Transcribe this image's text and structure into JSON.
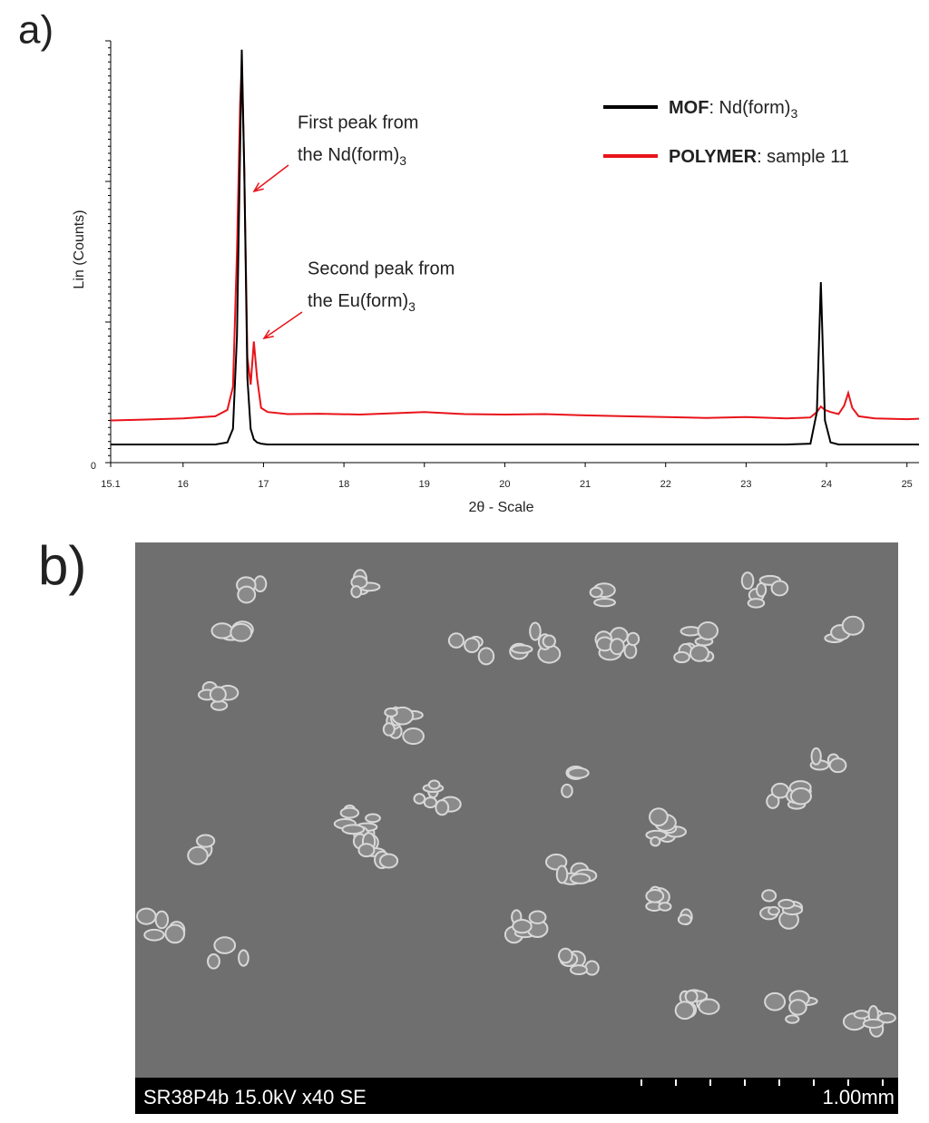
{
  "panel_labels": [
    "a)",
    "b)"
  ],
  "chart_data": {
    "type": "line",
    "y_label": "Lin (Counts)",
    "x_label": "2θ - Scale",
    "x": [
      15.1,
      15.5,
      16,
      16.4,
      16.55,
      16.62,
      16.67,
      16.71,
      16.73,
      16.76,
      16.8,
      16.84,
      16.88,
      16.92,
      16.97,
      17.05,
      17.3,
      17.7,
      18.2,
      19,
      19.5,
      20,
      20.5,
      21,
      21.5,
      22,
      22.5,
      23,
      23.5,
      23.8,
      23.88,
      23.93,
      23.98,
      24.05,
      24.15,
      24.22,
      24.27,
      24.32,
      24.4,
      24.6,
      25,
      25.15
    ],
    "series": [
      {
        "name": "MOF: Nd(form)3",
        "color": "#000000",
        "values": [
          4.3,
          4.3,
          4.3,
          4.3,
          4.8,
          8,
          30,
          75,
          97.9,
          70,
          20,
          8,
          5.5,
          4.8,
          4.5,
          4.3,
          4.3,
          4.3,
          4.3,
          4.3,
          4.3,
          4.3,
          4.3,
          4.3,
          4.3,
          4.3,
          4.3,
          4.3,
          4.3,
          4.5,
          12,
          42.8,
          10,
          4.8,
          4.3,
          4.3,
          4.3,
          4.3,
          4.3,
          4.3,
          4.3,
          4.3
        ]
      },
      {
        "name": "POLYMER: sample 11",
        "color": "#e8141a",
        "values": [
          10,
          10.2,
          10.5,
          11,
          12.5,
          18,
          50,
          85,
          94.6,
          70,
          25,
          18.5,
          28.7,
          20,
          13,
          12,
          11.5,
          11.6,
          11.4,
          12,
          11.5,
          11.4,
          11.5,
          11.2,
          11,
          10.8,
          10.6,
          10.8,
          10.5,
          10.7,
          12,
          13.3,
          12.5,
          12,
          11.5,
          13.5,
          16.5,
          13,
          11,
          10.5,
          10.3,
          10.4
        ]
      }
    ],
    "xlim": [
      15.1,
      25.15
    ],
    "xticks": [
      15.1,
      16,
      17,
      18,
      19,
      20,
      21,
      22,
      23,
      24,
      25
    ],
    "ylim": [
      0,
      100
    ],
    "yticks": [
      0
    ],
    "annotations": [
      {
        "lines": [
          "First peak from",
          "the Nd(form)3"
        ]
      },
      {
        "lines": [
          "Second peak from",
          "the Eu(form)3"
        ]
      }
    ]
  },
  "sem_image": {
    "info": "SR38P4b 15.0kV x40 SE",
    "scale_bar": "1.00mm"
  }
}
